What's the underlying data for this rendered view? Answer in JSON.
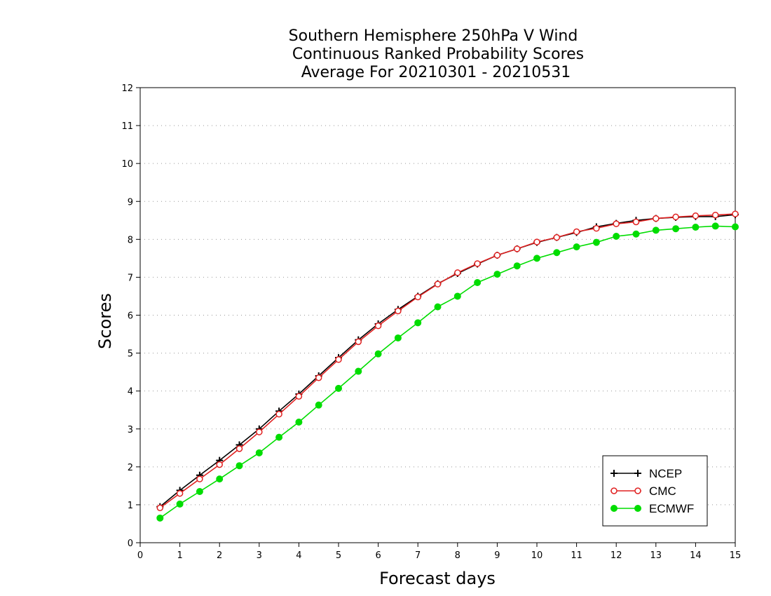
{
  "chart_data": {
    "type": "line",
    "title": [
      "Southern Hemisphere 250hPa V Wind",
      "Continuous Ranked Probability Scores",
      "Average For 20210301 - 20210531"
    ],
    "xlabel": "Forecast days",
    "ylabel": "Scores",
    "xlim": [
      0,
      15
    ],
    "ylim": [
      0,
      12
    ],
    "xticks": [
      "0",
      "1",
      "2",
      "3",
      "4",
      "5",
      "6",
      "7",
      "8",
      "9",
      "10",
      "11",
      "12",
      "13",
      "14",
      "15"
    ],
    "yticks": [
      "0",
      "1",
      "2",
      "3",
      "4",
      "5",
      "6",
      "7",
      "8",
      "9",
      "10",
      "11",
      "12"
    ],
    "grid": "horizontal dotted",
    "legend_position": "bottom-right",
    "x": [
      0.5,
      1,
      1.5,
      2,
      2.5,
      3,
      3.5,
      4,
      4.5,
      5,
      5.5,
      6,
      6.5,
      7,
      7.5,
      8,
      8.5,
      9,
      9.5,
      10,
      10.5,
      11,
      11.5,
      12,
      12.5,
      13,
      13.5,
      14,
      14.5,
      15
    ],
    "series": [
      {
        "name": "NCEP",
        "color": "#000000",
        "marker": "plus",
        "values": [
          0.95,
          1.38,
          1.78,
          2.17,
          2.58,
          3.0,
          3.47,
          3.92,
          4.4,
          4.88,
          5.35,
          5.77,
          6.15,
          6.5,
          6.83,
          7.1,
          7.35,
          7.58,
          7.75,
          7.92,
          8.05,
          8.18,
          8.33,
          8.42,
          8.5,
          8.55,
          8.58,
          8.6,
          8.6,
          8.65
        ]
      },
      {
        "name": "CMC",
        "color": "#e02020",
        "marker": "open-circle",
        "values": [
          0.92,
          1.3,
          1.68,
          2.06,
          2.48,
          2.92,
          3.39,
          3.86,
          4.35,
          4.83,
          5.3,
          5.72,
          6.11,
          6.48,
          6.82,
          7.12,
          7.36,
          7.58,
          7.75,
          7.93,
          8.05,
          8.2,
          8.29,
          8.41,
          8.46,
          8.55,
          8.59,
          8.62,
          8.64,
          8.67
        ]
      },
      {
        "name": "ECMWF",
        "color": "#00dd00",
        "marker": "filled-circle",
        "values": [
          0.65,
          1.02,
          1.35,
          1.68,
          2.03,
          2.37,
          2.78,
          3.18,
          3.63,
          4.07,
          4.52,
          4.98,
          5.4,
          5.8,
          6.22,
          6.5,
          6.86,
          7.08,
          7.3,
          7.5,
          7.65,
          7.8,
          7.92,
          8.08,
          8.14,
          8.24,
          8.28,
          8.32,
          8.35,
          8.33
        ]
      }
    ]
  }
}
